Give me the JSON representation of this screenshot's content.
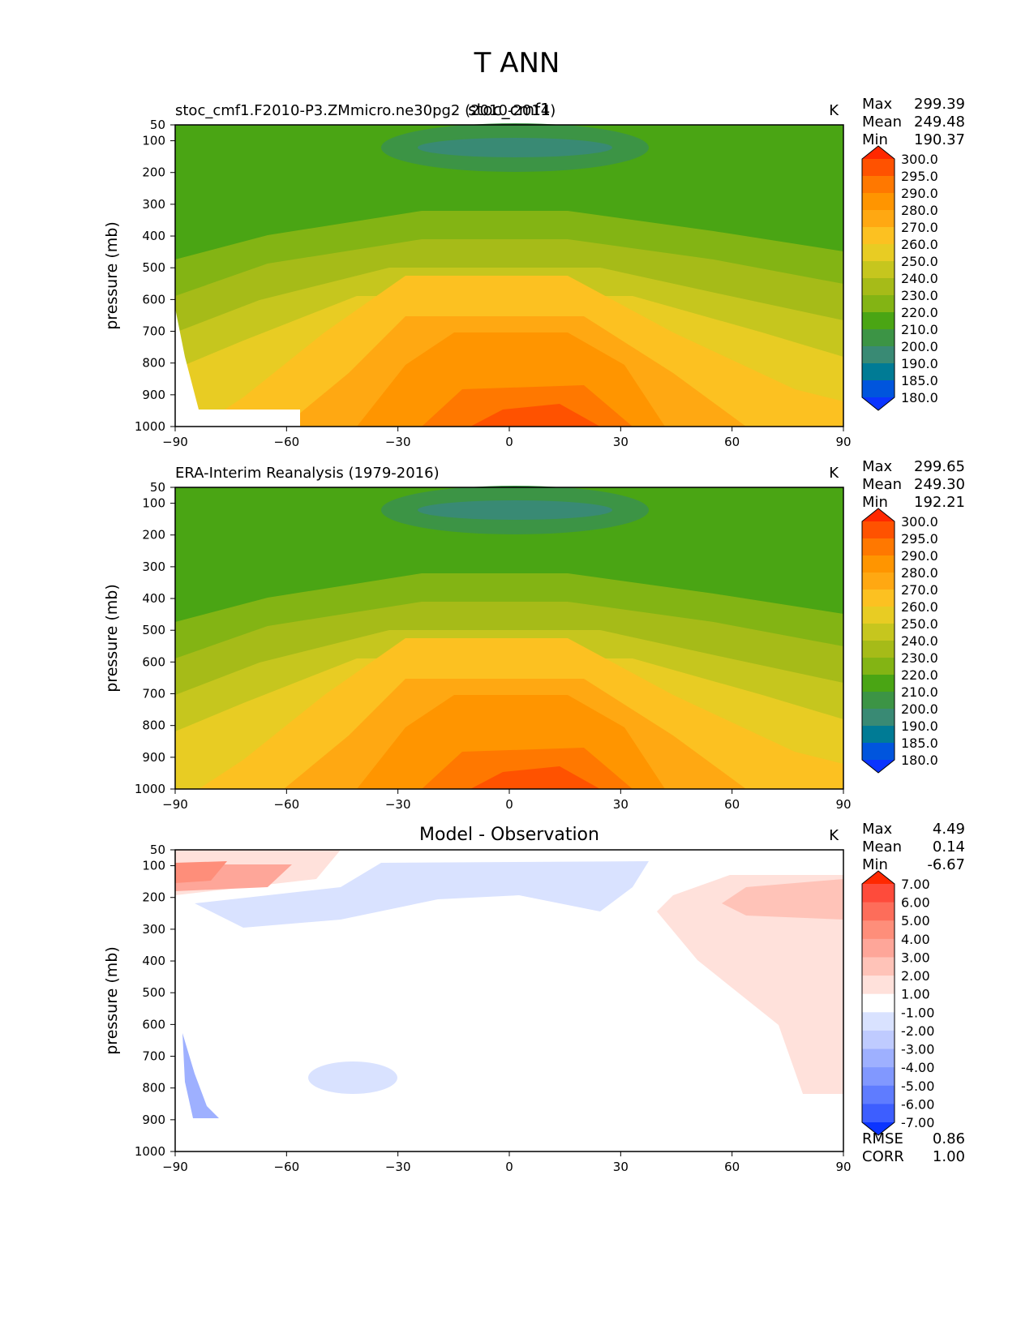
{
  "main_title": "T ANN",
  "chart_data": [
    {
      "type": "contour",
      "name": "model",
      "title_left": "stoc_cmf1.F2010-P3.ZMmicro.ne30pg2 (2010-2014)",
      "title_center": "stoc_cmf1",
      "units": "K",
      "ylabel": "pressure (mb)",
      "xticks": [
        "−90",
        "−60",
        "−30",
        "0",
        "30",
        "60",
        "90"
      ],
      "xtick_values": [
        -90,
        -60,
        -30,
        0,
        30,
        60,
        90
      ],
      "yticks": [
        "50",
        "100",
        "200",
        "300",
        "400",
        "500",
        "600",
        "700",
        "800",
        "900",
        "1000"
      ],
      "ytick_values": [
        50,
        100,
        200,
        300,
        400,
        500,
        600,
        700,
        800,
        900,
        1000
      ],
      "xlim": [
        -90,
        90
      ],
      "ylim": [
        50,
        1000
      ],
      "stats": [
        {
          "label": "Max",
          "value": "299.39"
        },
        {
          "label": "Mean",
          "value": "249.48"
        },
        {
          "label": "Min",
          "value": "190.37"
        }
      ],
      "colorbar": {
        "levels": [
          "300.0",
          "295.0",
          "290.0",
          "280.0",
          "270.0",
          "260.0",
          "250.0",
          "240.0",
          "230.0",
          "220.0",
          "210.0",
          "200.0",
          "190.0",
          "185.0",
          "180.0"
        ],
        "colors": [
          "#ff2800",
          "#ff5200",
          "#ff7800",
          "#ff9500",
          "#ffa812",
          "#fcc121",
          "#e8cc23",
          "#c6c61e",
          "#a6bb18",
          "#83b414",
          "#4aa514",
          "#3c9445",
          "#398a74",
          "#007b95",
          "#0055dd",
          "#0b34ff"
        ]
      }
    },
    {
      "type": "contour",
      "name": "obs",
      "title_left": "ERA-Interim Reanalysis (1979-2016)",
      "units": "K",
      "ylabel": "pressure (mb)",
      "xticks": [
        "−90",
        "−60",
        "−30",
        "0",
        "30",
        "60",
        "90"
      ],
      "xtick_values": [
        -90,
        -60,
        -30,
        0,
        30,
        60,
        90
      ],
      "yticks": [
        "50",
        "100",
        "200",
        "300",
        "400",
        "500",
        "600",
        "700",
        "800",
        "900",
        "1000"
      ],
      "ytick_values": [
        50,
        100,
        200,
        300,
        400,
        500,
        600,
        700,
        800,
        900,
        1000
      ],
      "xlim": [
        -90,
        90
      ],
      "ylim": [
        50,
        1000
      ],
      "stats": [
        {
          "label": "Max",
          "value": "299.65"
        },
        {
          "label": "Mean",
          "value": "249.30"
        },
        {
          "label": "Min",
          "value": "192.21"
        }
      ],
      "colorbar": {
        "levels": [
          "300.0",
          "295.0",
          "290.0",
          "280.0",
          "270.0",
          "260.0",
          "250.0",
          "240.0",
          "230.0",
          "220.0",
          "210.0",
          "200.0",
          "190.0",
          "185.0",
          "180.0"
        ],
        "colors": [
          "#ff2800",
          "#ff5200",
          "#ff7800",
          "#ff9500",
          "#ffa812",
          "#fcc121",
          "#e8cc23",
          "#c6c61e",
          "#a6bb18",
          "#83b414",
          "#4aa514",
          "#3c9445",
          "#398a74",
          "#007b95",
          "#0055dd",
          "#0b34ff"
        ]
      }
    },
    {
      "type": "contour",
      "name": "diff",
      "title_center": "Model - Observation",
      "units": "K",
      "ylabel": "pressure (mb)",
      "xticks": [
        "−90",
        "−60",
        "−30",
        "0",
        "30",
        "60",
        "90"
      ],
      "xtick_values": [
        -90,
        -60,
        -30,
        0,
        30,
        60,
        90
      ],
      "yticks": [
        "50",
        "100",
        "200",
        "300",
        "400",
        "500",
        "600",
        "700",
        "800",
        "900",
        "1000"
      ],
      "ytick_values": [
        50,
        100,
        200,
        300,
        400,
        500,
        600,
        700,
        800,
        900,
        1000
      ],
      "xlim": [
        -90,
        90
      ],
      "ylim": [
        50,
        1000
      ],
      "stats": [
        {
          "label": "Max",
          "value": "4.49"
        },
        {
          "label": "Mean",
          "value": "0.14"
        },
        {
          "label": "Min",
          "value": "-6.67"
        }
      ],
      "metrics": [
        {
          "label": "RMSE",
          "value": "0.86"
        },
        {
          "label": "CORR",
          "value": "1.00"
        }
      ],
      "colorbar": {
        "levels": [
          "7.00",
          "6.00",
          "5.00",
          "4.00",
          "3.00",
          "2.00",
          "1.00",
          "-1.00",
          "-2.00",
          "-3.00",
          "-4.00",
          "-5.00",
          "-6.00",
          "-7.00"
        ],
        "colors": [
          "#ff2800",
          "#fe4b3b",
          "#fd6d5a",
          "#fe8e7a",
          "#fea699",
          "#ffc3b8",
          "#ffe1db",
          "#ffffff",
          "#d9e2ff",
          "#bfcbff",
          "#9eb0ff",
          "#8198ff",
          "#5f7cff",
          "#3d5eff",
          "#0b34ff"
        ]
      }
    }
  ]
}
